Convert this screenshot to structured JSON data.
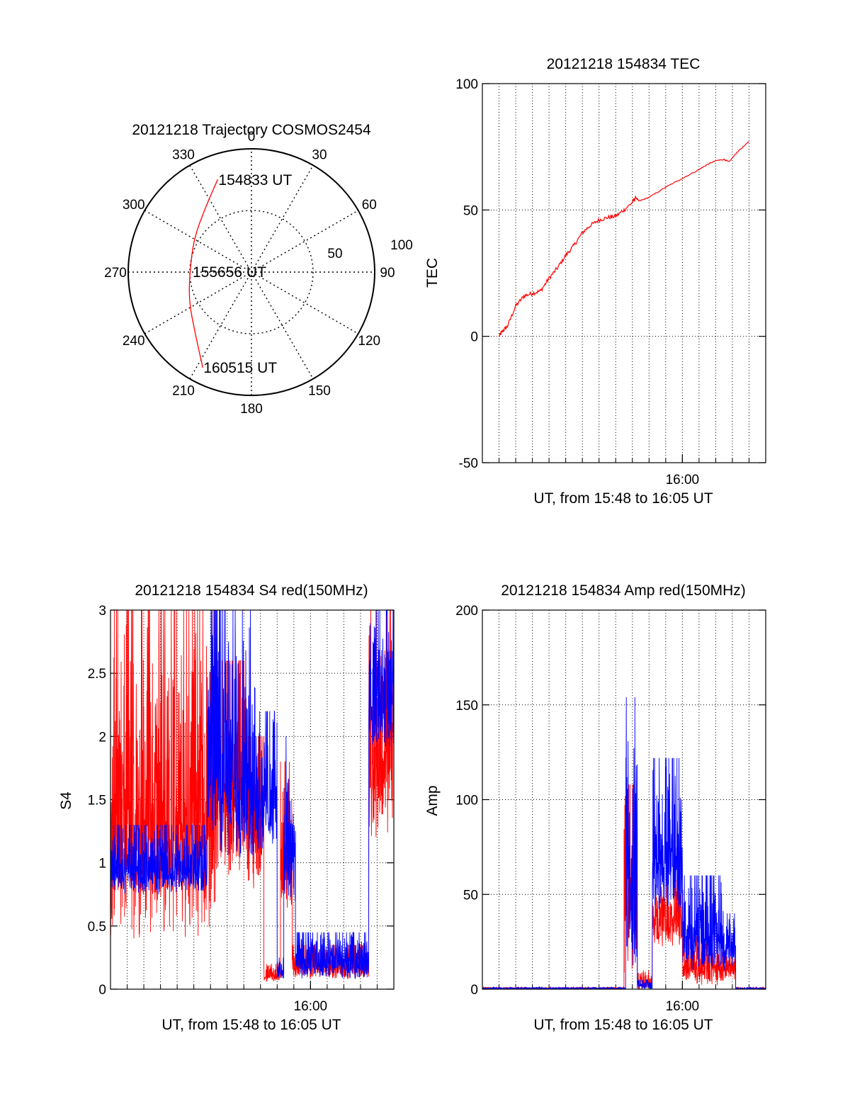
{
  "colors": {
    "series_red": "#ff0000",
    "series_blue": "#0000ff",
    "axes": "#000000",
    "grid": "#000000",
    "background": "#ffffff"
  },
  "chart_data": [
    {
      "type": "polar",
      "title": "20121218 Trajectory COSMOS2454",
      "azimuth_labels": [
        "0",
        "30",
        "60",
        "90",
        "120",
        "150",
        "180",
        "210",
        "240",
        "270",
        "300",
        "330"
      ],
      "radial_labels": [
        "50",
        "100"
      ],
      "grid": "dotted",
      "series": [
        {
          "color": "red",
          "points": [
            {
              "az": 340,
              "r": 80
            },
            {
              "az": 324,
              "r": 64
            },
            {
              "az": 300,
              "r": 54
            },
            {
              "az": 270,
              "r": 50
            },
            {
              "az": 245,
              "r": 56
            },
            {
              "az": 222,
              "r": 68
            },
            {
              "az": 207,
              "r": 87
            }
          ]
        }
      ],
      "annotations": [
        {
          "text": "154833 UT",
          "az": 340,
          "r": 80
        },
        {
          "text": "155656 UT",
          "az": 270,
          "r": 0
        },
        {
          "text": "160515 UT",
          "az": 207,
          "r": 87
        }
      ]
    },
    {
      "type": "line",
      "title": "20121218 154834 TEC",
      "ylabel": "TEC",
      "xlabel": "UT, from 15:48 to 16:05 UT",
      "x_tick_labels": [
        "16:00"
      ],
      "y_tick_labels": [
        "-50",
        "0",
        "50",
        "100"
      ],
      "ylim": [
        -50,
        100
      ],
      "grid": "dotted",
      "series": [
        {
          "color": "red",
          "points": [
            [
              1,
              0
            ],
            [
              1.2,
              2
            ],
            [
              1.5,
              4
            ],
            [
              2,
              12
            ],
            [
              2.5,
              16
            ],
            [
              3,
              17
            ],
            [
              3.5,
              18
            ],
            [
              4,
              23
            ],
            [
              4.5,
              27
            ],
            [
              5,
              32
            ],
            [
              5.5,
              36
            ],
            [
              6,
              41
            ],
            [
              6.5,
              44
            ],
            [
              7,
              46
            ],
            [
              7.5,
              47
            ],
            [
              8,
              47.5
            ],
            [
              8.5,
              50
            ],
            [
              9,
              53
            ],
            [
              9.2,
              55
            ],
            [
              9.4,
              53.5
            ],
            [
              10,
              55
            ],
            [
              11,
              59
            ],
            [
              12,
              62.5
            ],
            [
              13,
              66
            ],
            [
              13.5,
              68
            ],
            [
              14,
              69.5
            ],
            [
              14.5,
              70
            ],
            [
              14.8,
              69
            ],
            [
              15.3,
              73
            ],
            [
              16,
              77
            ]
          ]
        }
      ]
    },
    {
      "type": "line",
      "title": "20121218 154834 S4 red(150MHz)",
      "ylabel": "S4",
      "xlabel": "UT, from 15:48 to 16:05 UT",
      "x_tick_labels": [
        "16:00"
      ],
      "y_tick_labels": [
        "0",
        "0.5",
        "1",
        "1.5",
        "2",
        "2.5",
        "3"
      ],
      "ylim": [
        0,
        3
      ],
      "grid": "dotted",
      "series": [
        {
          "color": "red",
          "segments": [
            {
              "x0": 0.0,
              "x1": 6.3,
              "low": 0.4,
              "high": 3.0
            },
            {
              "x0": 6.3,
              "x1": 8.2,
              "low": 0.9,
              "high": 2.6
            },
            {
              "x0": 8.2,
              "x1": 9.2,
              "low": 0.7,
              "high": 2.0
            },
            {
              "x0": 9.2,
              "x1": 10.2,
              "low": 0.05,
              "high": 0.2
            },
            {
              "x0": 10.2,
              "x1": 10.9,
              "low": 0.6,
              "high": 1.8
            },
            {
              "x0": 10.9,
              "x1": 15.5,
              "low": 0.08,
              "high": 0.35
            },
            {
              "x0": 15.5,
              "x1": 17.0,
              "low": 1.2,
              "high": 3.0
            }
          ]
        },
        {
          "color": "blue",
          "segments": [
            {
              "x0": 0.0,
              "x1": 5.8,
              "low": 0.75,
              "high": 1.3
            },
            {
              "x0": 5.8,
              "x1": 8.8,
              "low": 1.0,
              "high": 3.0
            },
            {
              "x0": 8.8,
              "x1": 10.0,
              "low": 1.1,
              "high": 2.2
            },
            {
              "x0": 10.0,
              "x1": 10.4,
              "low": 0.08,
              "high": 0.25
            },
            {
              "x0": 10.4,
              "x1": 11.1,
              "low": 0.6,
              "high": 2.0
            },
            {
              "x0": 11.1,
              "x1": 15.5,
              "low": 0.08,
              "high": 0.45
            },
            {
              "x0": 15.5,
              "x1": 17.0,
              "low": 1.9,
              "high": 3.0
            }
          ]
        }
      ]
    },
    {
      "type": "line",
      "title": "20121218 154834 Amp red(150MHz)",
      "ylabel": "Amp",
      "xlabel": "UT, from 15:48 to 16:05 UT",
      "x_tick_labels": [
        "16:00"
      ],
      "y_tick_labels": [
        "0",
        "50",
        "100",
        "150",
        "200"
      ],
      "ylim": [
        0,
        200
      ],
      "grid": "dotted",
      "series": [
        {
          "color": "red",
          "segments": [
            {
              "x0": 0.0,
              "x1": 8.5,
              "low": 0,
              "high": 1
            },
            {
              "x0": 8.5,
              "x1": 9.3,
              "low": 5,
              "high": 108
            },
            {
              "x0": 9.3,
              "x1": 10.2,
              "low": 0,
              "high": 10
            },
            {
              "x0": 10.2,
              "x1": 12.0,
              "low": 22,
              "high": 60
            },
            {
              "x0": 12.0,
              "x1": 14.5,
              "low": 2,
              "high": 28
            },
            {
              "x0": 14.5,
              "x1": 15.2,
              "low": 5,
              "high": 20
            },
            {
              "x0": 15.2,
              "x1": 17.0,
              "low": 0,
              "high": 1
            }
          ]
        },
        {
          "color": "blue",
          "segments": [
            {
              "x0": 0.0,
              "x1": 8.6,
              "low": 0,
              "high": 1
            },
            {
              "x0": 8.6,
              "x1": 9.3,
              "low": 10,
              "high": 154
            },
            {
              "x0": 9.3,
              "x1": 10.2,
              "low": 0,
              "high": 5
            },
            {
              "x0": 10.2,
              "x1": 12.0,
              "low": 40,
              "high": 122
            },
            {
              "x0": 12.0,
              "x1": 14.5,
              "low": 10,
              "high": 60
            },
            {
              "x0": 14.5,
              "x1": 15.2,
              "low": 10,
              "high": 40
            },
            {
              "x0": 15.2,
              "x1": 17.0,
              "low": 0,
              "high": 1
            }
          ]
        }
      ]
    }
  ]
}
